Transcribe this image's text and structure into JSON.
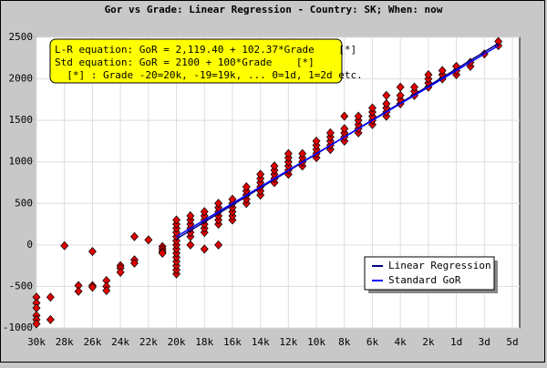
{
  "chart_data": {
    "type": "scatter",
    "title": "Gor vs Grade: Linear Regression - Country: SK; When: now",
    "annotations": [
      "L-R equation: GoR = 2,119.40 + 102.37*Grade    [*]",
      "Std equation: GoR = 2100 + 100*Grade    [*]",
      "  [*] : Grade -20=20k, -19=19k, ... 0=1d, 1=2d etc."
    ],
    "xlim": [
      -30,
      4
    ],
    "ylim": [
      -1000,
      2500
    ],
    "xticks": [
      {
        "value": -30,
        "label": "30k"
      },
      {
        "value": -28,
        "label": "28k"
      },
      {
        "value": -26,
        "label": "26k"
      },
      {
        "value": -24,
        "label": "24k"
      },
      {
        "value": -22,
        "label": "22k"
      },
      {
        "value": -20,
        "label": "20k"
      },
      {
        "value": -18,
        "label": "18k"
      },
      {
        "value": -16,
        "label": "16k"
      },
      {
        "value": -14,
        "label": "14k"
      },
      {
        "value": -12,
        "label": "12k"
      },
      {
        "value": -10,
        "label": "10k"
      },
      {
        "value": -8,
        "label": "8k"
      },
      {
        "value": -6,
        "label": "6k"
      },
      {
        "value": -4,
        "label": "4k"
      },
      {
        "value": -2,
        "label": "2k"
      },
      {
        "value": 0,
        "label": "1d"
      },
      {
        "value": 2,
        "label": "3d"
      },
      {
        "value": 4,
        "label": "5d"
      }
    ],
    "yticks": [
      -1000,
      -500,
      0,
      500,
      1000,
      1500,
      2000,
      2500
    ],
    "grid": true,
    "legend": "lower right",
    "points": {
      "color": "#e00000",
      "x": [
        -30,
        -30,
        -30,
        -30,
        -30,
        -30,
        -29,
        -29,
        -28,
        -27,
        -27,
        -26,
        -26,
        -26,
        -25,
        -25,
        -25,
        -24,
        -24,
        -24,
        -23,
        -23,
        -23,
        -22,
        -21,
        -21,
        -21,
        -21,
        -20,
        -20,
        -20,
        -20,
        -20,
        -20,
        -20,
        -20,
        -20,
        -20,
        -20,
        -20,
        -20,
        -20,
        -19,
        -19,
        -19,
        -19,
        -19,
        -19,
        -19,
        -18,
        -18,
        -18,
        -18,
        -18,
        -18,
        -18,
        -17,
        -17,
        -17,
        -17,
        -17,
        -17,
        -17,
        -16,
        -16,
        -16,
        -16,
        -16,
        -16,
        -15,
        -15,
        -15,
        -15,
        -15,
        -14,
        -14,
        -14,
        -14,
        -14,
        -14,
        -13,
        -13,
        -13,
        -13,
        -13,
        -12,
        -12,
        -12,
        -12,
        -12,
        -12,
        -11,
        -11,
        -11,
        -11,
        -10,
        -10,
        -10,
        -10,
        -10,
        -9,
        -9,
        -9,
        -9,
        -9,
        -8,
        -8,
        -8,
        -8,
        -8,
        -7,
        -7,
        -7,
        -7,
        -7,
        -6,
        -6,
        -6,
        -6,
        -6,
        -5,
        -5,
        -5,
        -5,
        -5,
        -4,
        -4,
        -4,
        -4,
        -3,
        -3,
        -3,
        -2,
        -2,
        -2,
        -2,
        -1,
        -1,
        -1,
        0,
        0,
        0,
        1,
        1,
        2,
        3,
        3
      ],
      "values": [
        -630,
        -700,
        -760,
        -850,
        -900,
        -950,
        -630,
        -900,
        -10,
        -490,
        -560,
        -80,
        -490,
        -510,
        -430,
        -500,
        -550,
        -250,
        -280,
        -330,
        100,
        -180,
        -220,
        60,
        -20,
        -50,
        -80,
        -100,
        -350,
        -300,
        -250,
        -200,
        -150,
        -100,
        -50,
        0,
        50,
        100,
        150,
        200,
        250,
        300,
        0,
        100,
        150,
        200,
        250,
        300,
        350,
        -50,
        150,
        200,
        250,
        300,
        350,
        400,
        0,
        250,
        300,
        350,
        400,
        450,
        500,
        300,
        350,
        400,
        450,
        500,
        550,
        500,
        550,
        600,
        650,
        700,
        600,
        650,
        700,
        750,
        800,
        850,
        750,
        800,
        850,
        900,
        950,
        850,
        900,
        950,
        1000,
        1050,
        1100,
        950,
        1000,
        1050,
        1100,
        1050,
        1100,
        1150,
        1200,
        1250,
        1150,
        1200,
        1250,
        1300,
        1350,
        1250,
        1300,
        1350,
        1400,
        1550,
        1350,
        1400,
        1450,
        1500,
        1550,
        1450,
        1500,
        1550,
        1600,
        1650,
        1550,
        1600,
        1650,
        1700,
        1800,
        1700,
        1750,
        1800,
        1900,
        1800,
        1850,
        1900,
        1900,
        1950,
        2000,
        2050,
        2000,
        2050,
        2100,
        2050,
        2100,
        2150,
        2150,
        2200,
        2300,
        2400,
        2450
      ]
    },
    "series": [
      {
        "name": "Linear Regression",
        "color": "#000080",
        "x": [
          -20,
          3
        ],
        "values": [
          72,
          2426.51
        ]
      },
      {
        "name": "Standard GoR",
        "color": "#0000ff",
        "x": [
          -20,
          3
        ],
        "values": [
          100,
          2400
        ]
      }
    ]
  }
}
